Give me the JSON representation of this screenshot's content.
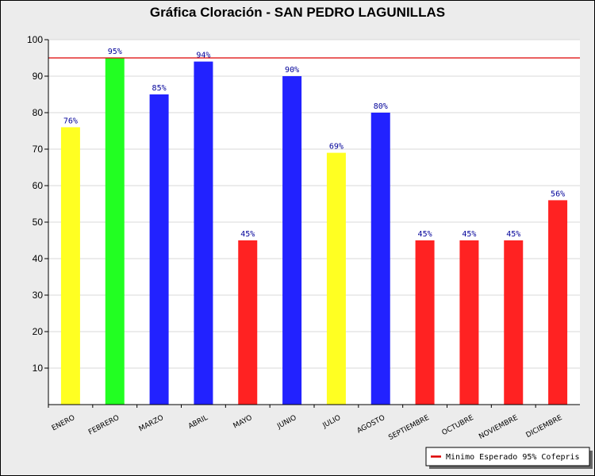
{
  "chart_data": {
    "type": "bar",
    "title": "Gráfica Cloración - SAN PEDRO LAGUNILLAS",
    "categories": [
      "ENERO",
      "FEBRERO",
      "MARZO",
      "ABRIL",
      "MAYO",
      "JUNIO",
      "JULIO",
      "AGOSTO",
      "SEPTIEMBRE",
      "OCTUBRE",
      "NOVIEMBRE",
      "DICIEMBRE"
    ],
    "values": [
      76,
      95,
      85,
      94,
      45,
      90,
      69,
      80,
      45,
      45,
      45,
      56
    ],
    "labels": [
      "76%",
      "95%",
      "85%",
      "94%",
      "45%",
      "90%",
      "69%",
      "80%",
      "45%",
      "45%",
      "45%",
      "56%"
    ],
    "colors": [
      "#ffff22",
      "#22ff22",
      "#2222ff",
      "#2222ff",
      "#ff2222",
      "#2222ff",
      "#ffff22",
      "#2222ff",
      "#ff2222",
      "#ff2222",
      "#ff2222",
      "#ff2222"
    ],
    "ylim": [
      0,
      100
    ],
    "yticks": [
      10,
      20,
      30,
      40,
      50,
      60,
      70,
      80,
      90,
      100
    ],
    "threshold": {
      "value": 95,
      "color": "#dd0000",
      "label": "Minimo Esperado 95% Cofepris"
    },
    "grid": true,
    "legend_position": "bottom-right"
  }
}
